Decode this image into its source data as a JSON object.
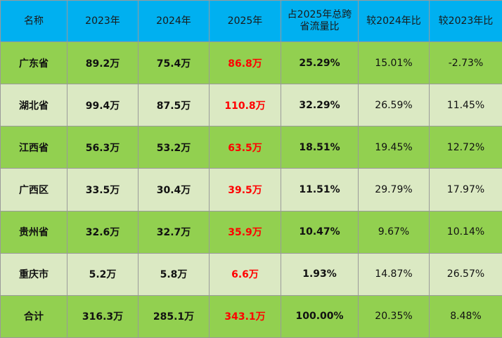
{
  "table": {
    "headers": [
      "名称",
      "2023年",
      "2024年",
      "2025年",
      "占2025年总跨省流量比",
      "较2024年比",
      "较2023年比"
    ],
    "rows": [
      {
        "name": "广东省",
        "y2023": "89.2万",
        "y2024": "75.4万",
        "y2025": "86.8万",
        "share": "25.29%",
        "vs2024": "15.01%",
        "vs2023": "-2.73%"
      },
      {
        "name": "湖北省",
        "y2023": "99.4万",
        "y2024": "87.5万",
        "y2025": "110.8万",
        "share": "32.29%",
        "vs2024": "26.59%",
        "vs2023": "11.45%"
      },
      {
        "name": "江西省",
        "y2023": "56.3万",
        "y2024": "53.2万",
        "y2025": "63.5万",
        "share": "18.51%",
        "vs2024": "19.45%",
        "vs2023": "12.72%"
      },
      {
        "name": "广西区",
        "y2023": "33.5万",
        "y2024": "30.4万",
        "y2025": "39.5万",
        "share": "11.51%",
        "vs2024": "29.79%",
        "vs2023": "17.97%"
      },
      {
        "name": "贵州省",
        "y2023": "32.6万",
        "y2024": "32.7万",
        "y2025": "35.9万",
        "share": "10.47%",
        "vs2024": "9.67%",
        "vs2023": "10.14%"
      },
      {
        "name": "重庆市",
        "y2023": "5.2万",
        "y2024": "5.8万",
        "y2025": "6.6万",
        "share": "1.93%",
        "vs2024": "14.87%",
        "vs2023": "26.57%"
      },
      {
        "name": "合计",
        "y2023": "316.3万",
        "y2024": "285.1万",
        "y2025": "343.1万",
        "share": "100.00%",
        "vs2024": "20.35%",
        "vs2023": "8.48%"
      }
    ]
  },
  "colors": {
    "header_bg": "#00b0f0",
    "row_green": "#92d050",
    "row_light": "#dbe9c3",
    "highlight_red": "#ff0000"
  }
}
